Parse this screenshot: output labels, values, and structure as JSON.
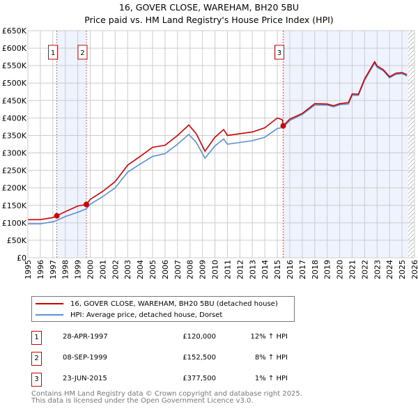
{
  "chart_data": {
    "type": "line",
    "title": "16, GOVER CLOSE, WAREHAM, BH20 5BU",
    "subtitle": "Price paid vs. HM Land Registry's House Price Index (HPI)",
    "xlabel": "",
    "ylabel": "",
    "xlim": [
      1995,
      2026
    ],
    "ylim": [
      0,
      650000
    ],
    "yticks": [
      "£0",
      "£50K",
      "£100K",
      "£150K",
      "£200K",
      "£250K",
      "£300K",
      "£350K",
      "£400K",
      "£450K",
      "£500K",
      "£550K",
      "£600K",
      "£650K"
    ],
    "xticks": [
      "1995",
      "1996",
      "1997",
      "1998",
      "1999",
      "2000",
      "2001",
      "2002",
      "2003",
      "2004",
      "2005",
      "2006",
      "2007",
      "2008",
      "2009",
      "2010",
      "2011",
      "2012",
      "2013",
      "2014",
      "2015",
      "2016",
      "2017",
      "2018",
      "2019",
      "2020",
      "2021",
      "2022",
      "2023",
      "2024",
      "2025",
      "2026"
    ],
    "grid": true,
    "series": [
      {
        "name": "16, GOVER CLOSE, WAREHAM, BH20 5BU (detached house)",
        "color": "#cc0000",
        "x": [
          1995,
          1996,
          1997,
          1997.32,
          1998,
          1999,
          1999.69,
          2000,
          2001,
          2002,
          2003,
          2004,
          2005,
          2006,
          2007,
          2007.9,
          2008.5,
          2009.2,
          2010,
          2010.7,
          2011,
          2012,
          2013,
          2014,
          2015,
          2015.4,
          2015.47,
          2016,
          2017,
          2018,
          2019,
          2019.5,
          2020,
          2020.7,
          2021,
          2021.5,
          2022,
          2022.8,
          2023,
          2023.5,
          2024,
          2024.5,
          2025,
          2025.4
        ],
        "y": [
          109000,
          109000,
          115000,
          120000,
          132000,
          148000,
          152500,
          167000,
          190000,
          218000,
          265000,
          290000,
          316000,
          322000,
          350000,
          380000,
          355000,
          305000,
          345000,
          367000,
          350000,
          355000,
          360000,
          372000,
          400000,
          395000,
          377500,
          397000,
          413000,
          441000,
          440000,
          435000,
          441000,
          444000,
          469000,
          468000,
          512000,
          561000,
          549000,
          538000,
          518000,
          528000,
          530000,
          524000
        ]
      },
      {
        "name": "HPI: Average price, detached house, Dorset",
        "color": "#5b8fd0",
        "x": [
          1995,
          1996,
          1997,
          1997.32,
          1998,
          1999,
          1999.69,
          2000,
          2001,
          2002,
          2003,
          2004,
          2005,
          2006,
          2007,
          2007.9,
          2008.5,
          2009.2,
          2010,
          2010.7,
          2011,
          2012,
          2013,
          2014,
          2015,
          2015.47,
          2016,
          2017,
          2018,
          2019,
          2019.5,
          2020,
          2020.7,
          2021,
          2021.5,
          2022,
          2022.8,
          2023,
          2023.5,
          2024,
          2024.5,
          2025,
          2025.4
        ],
        "y": [
          97000,
          97000,
          103000,
          107000,
          118000,
          130000,
          140000,
          153000,
          175000,
          200000,
          245000,
          268000,
          290000,
          298000,
          325000,
          353000,
          330000,
          285000,
          320000,
          340000,
          325000,
          330000,
          335000,
          345000,
          370000,
          373000,
          393000,
          410000,
          437000,
          437000,
          432000,
          438000,
          440000,
          465000,
          465000,
          508000,
          557000,
          545000,
          535000,
          515000,
          525000,
          527000,
          520000
        ]
      }
    ],
    "sales": [
      {
        "label": "1",
        "x": 1997.32,
        "y": 120000
      },
      {
        "label": "2",
        "x": 1999.69,
        "y": 152500
      },
      {
        "label": "3",
        "x": 2015.47,
        "y": 377500
      }
    ],
    "legend_position": "below"
  },
  "table": [
    {
      "num": "1",
      "date": "28-APR-1997",
      "price": "£120,000",
      "hpi": "12% ↑ HPI"
    },
    {
      "num": "2",
      "date": "08-SEP-1999",
      "price": "£152,500",
      "hpi": "8% ↑ HPI"
    },
    {
      "num": "3",
      "date": "23-JUN-2015",
      "price": "£377,500",
      "hpi": "1% ↑ HPI"
    }
  ],
  "footer": [
    "Contains HM Land Registry data © Crown copyright and database right 2025.",
    "This data is licensed under the Open Government Licence v3.0."
  ]
}
